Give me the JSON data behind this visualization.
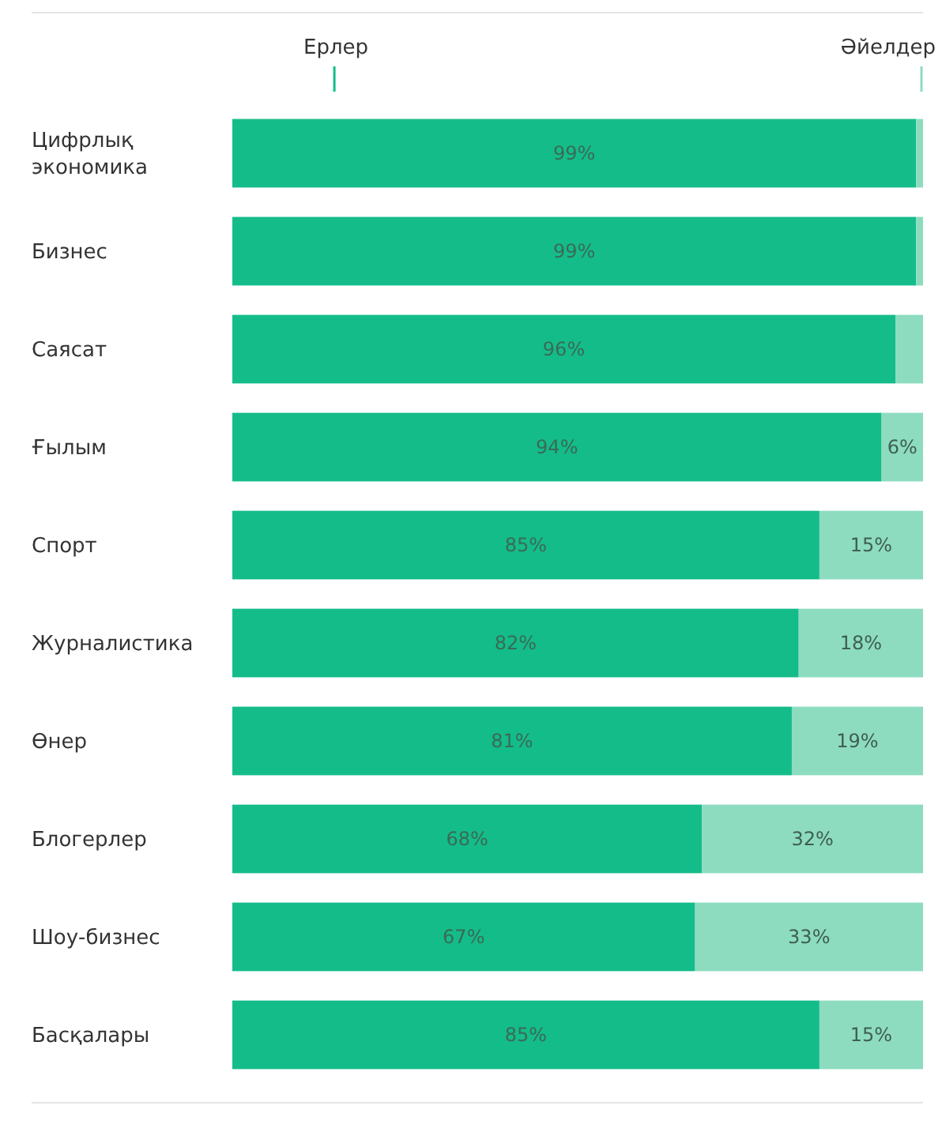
{
  "chart_data": {
    "type": "bar",
    "orientation": "horizontal",
    "stacked": true,
    "legend": "top",
    "tick_labels": "y",
    "categories": [
      "Цифрлық экономика",
      "Бизнес",
      "Саясат",
      "Ғылым",
      "Спорт",
      "Журналистика",
      "Өнер",
      "Блогерлер",
      "Шоу-бизнес",
      "Басқалары"
    ],
    "series": [
      {
        "name": "Ерлер",
        "color": "#14bc8a",
        "values": [
          99,
          99,
          96,
          94,
          85,
          82,
          81,
          68,
          67,
          85
        ],
        "value_labels": [
          "99%",
          "99%",
          "96%",
          "94%",
          "85%",
          "82%",
          "81%",
          "68%",
          "67%",
          "85%"
        ]
      },
      {
        "name": "Әйелдер",
        "color": "#8ddcc0",
        "values": [
          1,
          1,
          4,
          6,
          15,
          18,
          19,
          32,
          33,
          15
        ],
        "value_labels": [
          null,
          null,
          null,
          "6%",
          "15%",
          "18%",
          "19%",
          "32%",
          "33%",
          "15%"
        ]
      }
    ]
  }
}
